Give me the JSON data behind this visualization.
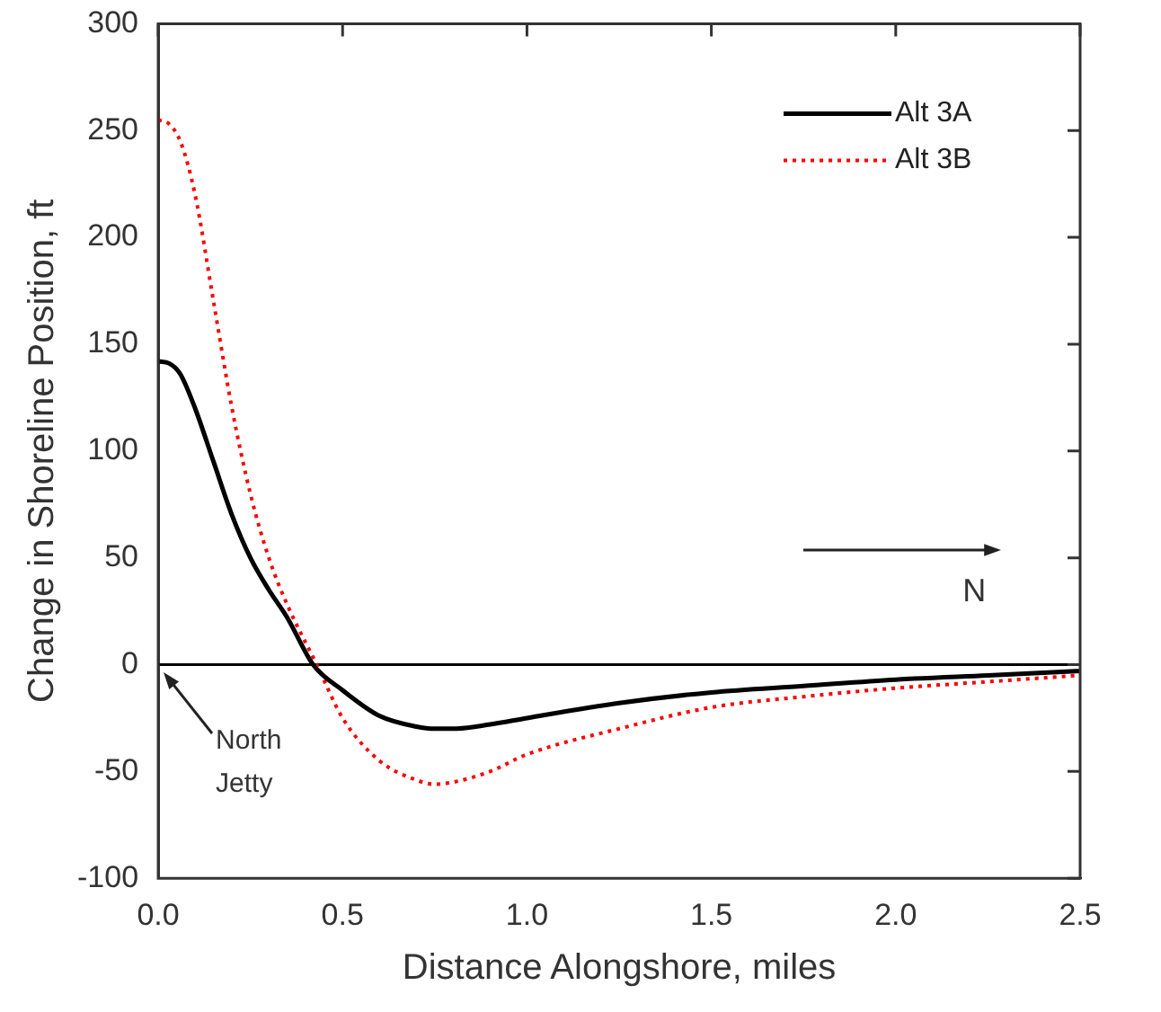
{
  "chart_data": {
    "type": "line",
    "xlabel": "Distance Alongshore, miles",
    "ylabel": "Change in Shoreline Position, ft",
    "xlim": [
      0,
      2.5
    ],
    "xticks": [
      {
        "value": 0,
        "label": "0.0"
      },
      {
        "value": 0.5,
        "label": "0.5"
      },
      {
        "value": 1,
        "label": "1.0"
      },
      {
        "value": 1.5,
        "label": "1.5"
      },
      {
        "value": 2,
        "label": "2.0"
      },
      {
        "value": 2.5,
        "label": "2.5"
      }
    ],
    "ylim": [
      -100,
      300
    ],
    "yticks": [
      -100,
      -50,
      0,
      50,
      100,
      150,
      200,
      250,
      300
    ],
    "grid": false,
    "legend": "top right",
    "marker": "none",
    "ref_lines": [
      {
        "axis": "y",
        "value": 0,
        "color": "#000000",
        "line_style": "solid"
      }
    ],
    "annotations": [
      "North Jetty",
      "N"
    ],
    "series": [
      {
        "name": "Alt 3A",
        "color": "#000000",
        "line_style": "solid",
        "x": [
          0,
          0.03,
          0.06,
          0.1,
          0.15,
          0.2,
          0.25,
          0.3,
          0.35,
          0.42,
          0.5,
          0.6,
          0.7,
          0.75,
          0.8,
          0.9,
          1,
          1.25,
          1.5,
          1.75,
          2,
          2.25,
          2.5
        ],
        "values": [
          142,
          141,
          136,
          120,
          95,
          70,
          50,
          35,
          22,
          0,
          -12,
          -24,
          -29,
          -30,
          -30,
          -28,
          -25,
          -18,
          -13,
          -10,
          -7,
          -5,
          -3
        ]
      },
      {
        "name": "Alt 3B",
        "color": "#ff0000",
        "line_style": "dotted",
        "x": [
          0,
          0.03,
          0.06,
          0.1,
          0.15,
          0.2,
          0.25,
          0.3,
          0.35,
          0.43,
          0.5,
          0.6,
          0.7,
          0.75,
          0.8,
          0.9,
          1,
          1.25,
          1.5,
          1.75,
          2,
          2.25,
          2.5
        ],
        "values": [
          255,
          253,
          245,
          220,
          170,
          120,
          80,
          50,
          28,
          0,
          -25,
          -45,
          -54,
          -56,
          -55,
          -50,
          -42,
          -30,
          -20,
          -15,
          -11,
          -8,
          -5
        ]
      }
    ]
  }
}
